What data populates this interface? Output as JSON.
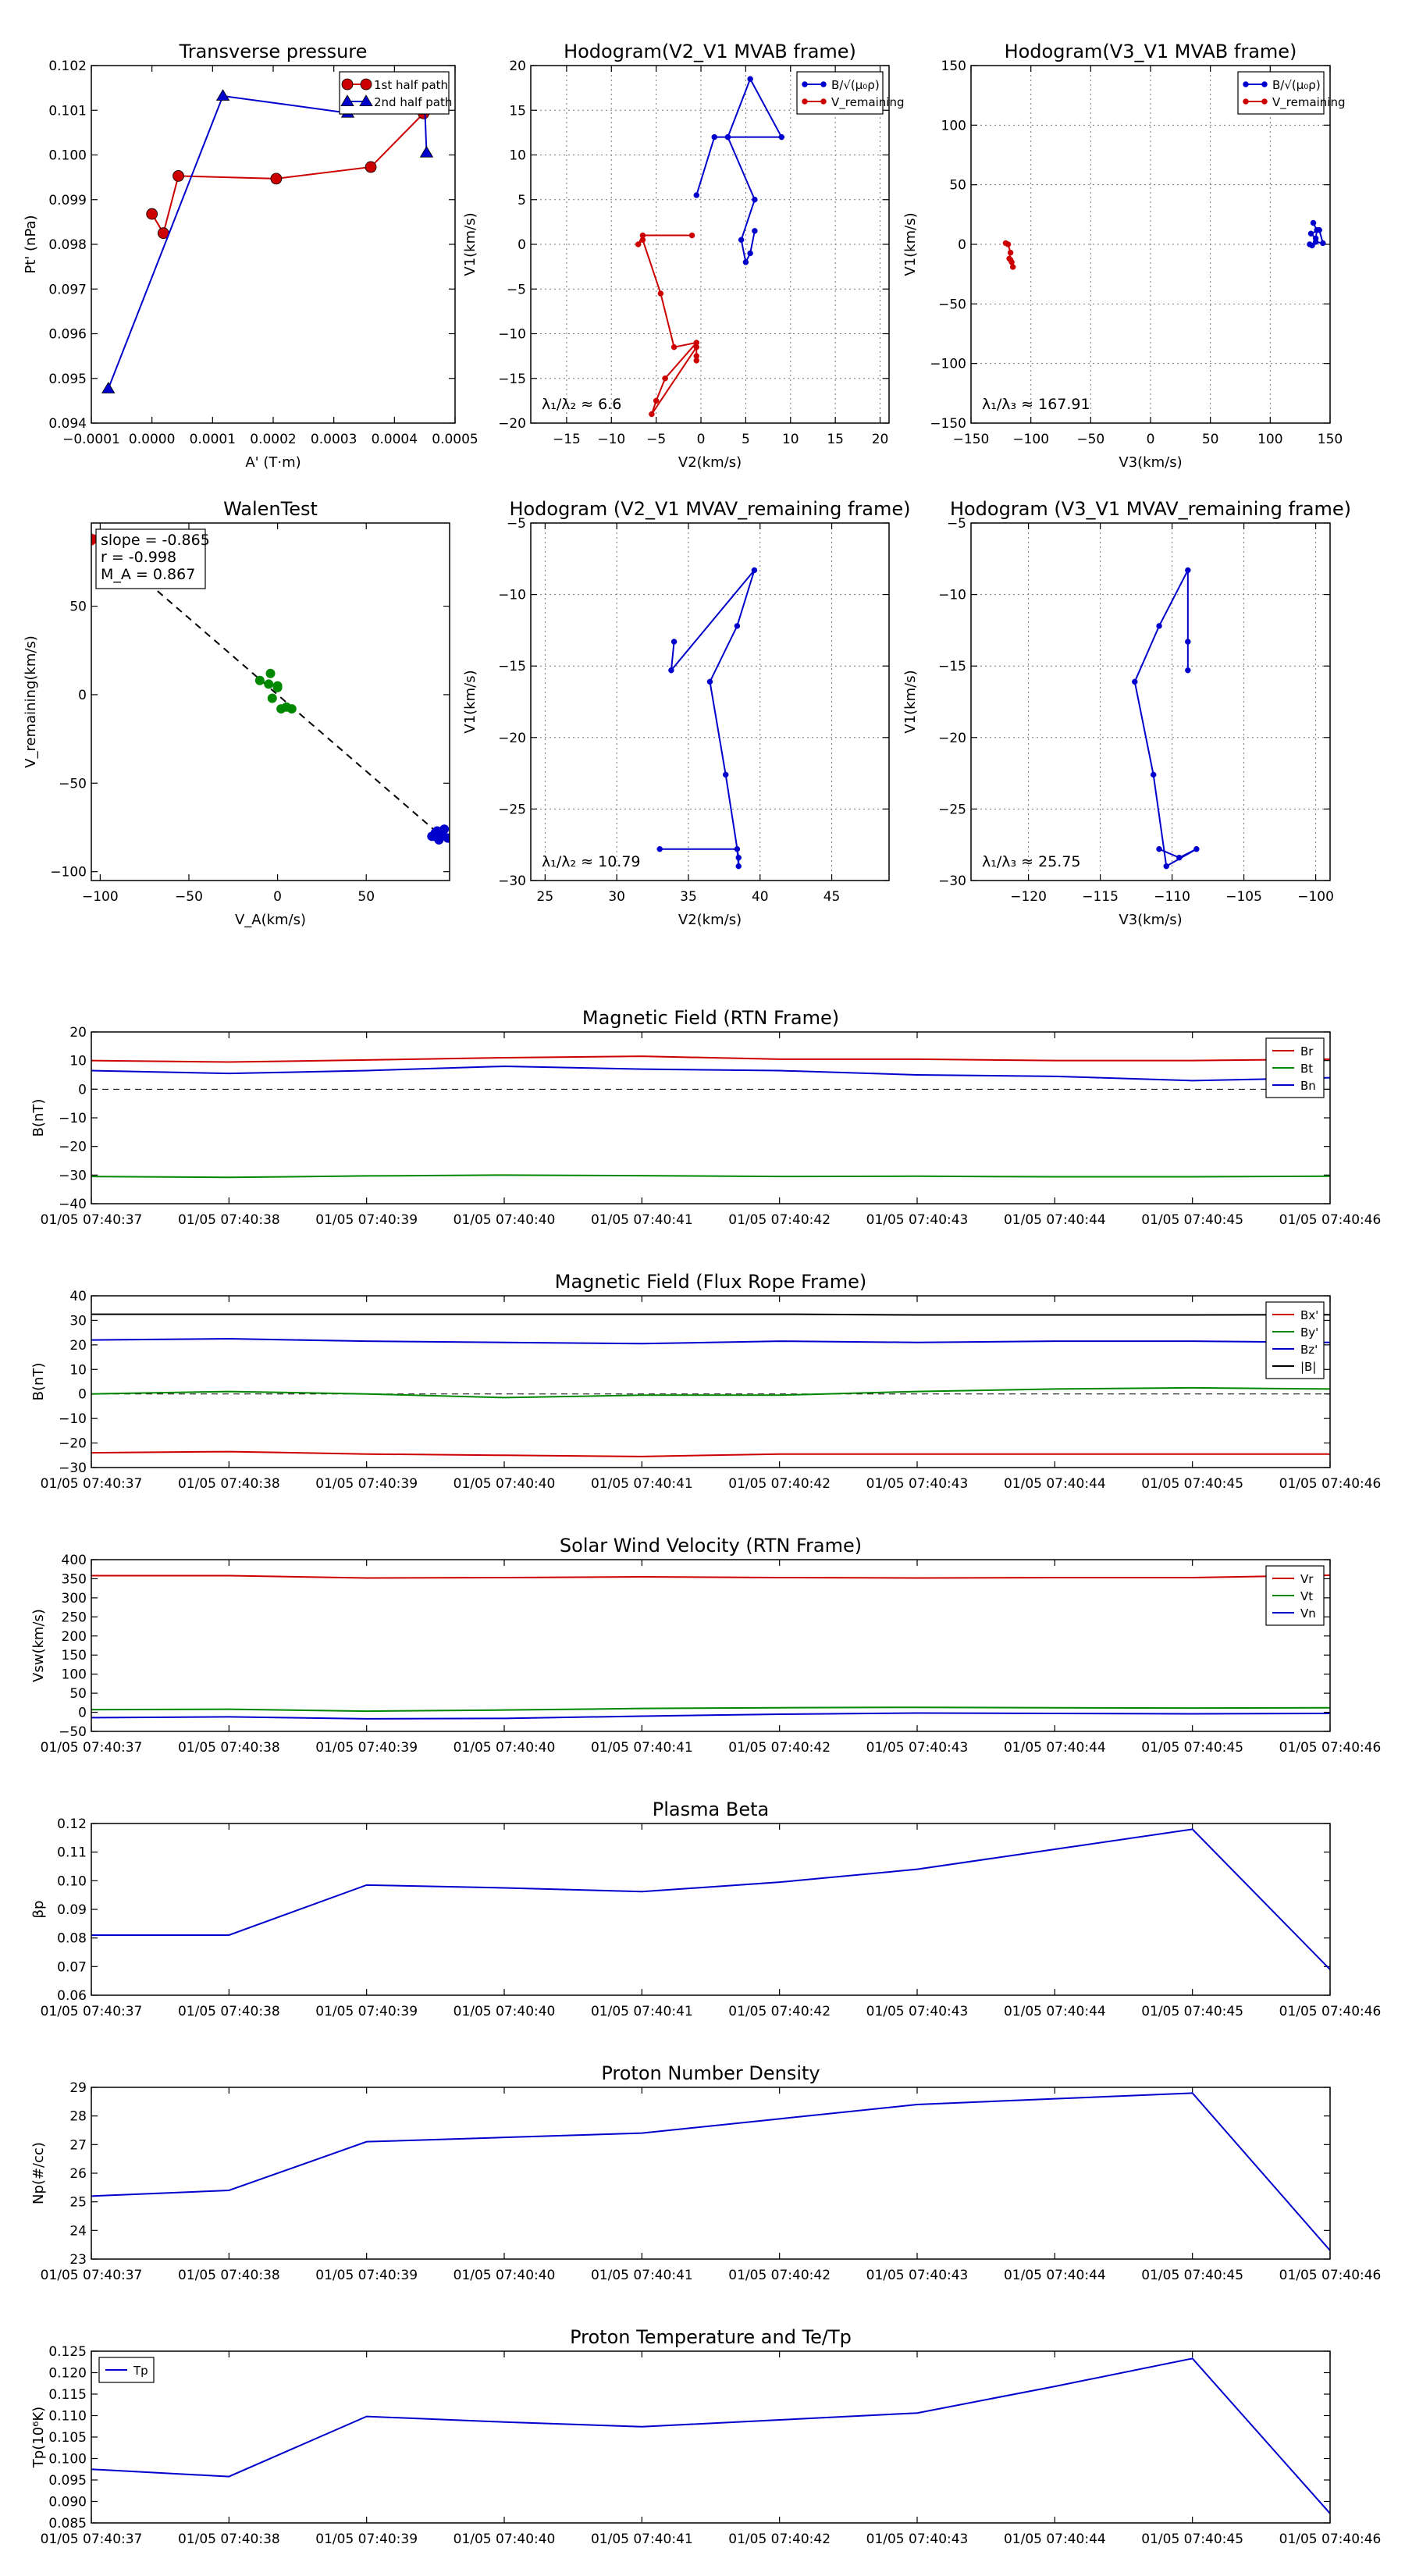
{
  "chart_data": [
    {
      "id": "pt",
      "type": "line",
      "title": "Transverse pressure",
      "xlabel": "A' (T·m)",
      "ylabel": "Pt' (nPa)",
      "xlim": [
        -0.0001,
        0.0005
      ],
      "ylim": [
        0.094,
        0.102
      ],
      "xticks": [
        -0.0001,
        0.0,
        0.0001,
        0.0002,
        0.0003,
        0.0004,
        0.0005
      ],
      "xtick_labels": [
        "−0.0001",
        "0.0000",
        "0.0001",
        "0.0002",
        "0.0003",
        "0.0004",
        "0.0005"
      ],
      "yticks": [
        0.094,
        0.095,
        0.096,
        0.097,
        0.098,
        0.099,
        0.1,
        0.101,
        0.102
      ],
      "ytick_labels": [
        "0.094",
        "0.095",
        "0.096",
        "0.097",
        "0.098",
        "0.099",
        "0.100",
        "0.101",
        "0.102"
      ],
      "grid": false,
      "legend": "top-right",
      "series": [
        {
          "name": "1st half path",
          "color": "#cc0000",
          "marker": "circle",
          "x": [
            0.000448,
            0.000361,
            0.000205,
            4.36e-05,
            1.89e-05,
            0.0
          ],
          "y": [
            0.10093,
            0.09973,
            0.09947,
            0.09953,
            0.09825,
            0.09868
          ]
        },
        {
          "name": "2nd half path",
          "color": "#0000cc",
          "marker": "triangle",
          "x": [
            -7.2e-05,
            0.000117,
            0.000323,
            0.00045,
            0.000453
          ],
          "y": [
            0.09477,
            0.10132,
            0.10094,
            0.10107,
            0.10005
          ]
        }
      ]
    },
    {
      "id": "hodo_mvab_21",
      "type": "line",
      "title": "Hodogram(V2_V1 MVAB frame)",
      "xlabel": "V2(km/s)",
      "ylabel": "V1(km/s)",
      "xlim": [
        -19,
        21
      ],
      "ylim": [
        -20,
        20
      ],
      "xticks": [
        -15,
        -10,
        -5,
        0,
        5,
        10,
        15,
        20
      ],
      "xtick_labels": [
        "−15",
        "−10",
        "−5",
        "0",
        "5",
        "10",
        "15",
        "20"
      ],
      "yticks": [
        -20,
        -15,
        -10,
        -5,
        0,
        5,
        10,
        15,
        20
      ],
      "ytick_labels": [
        "−20",
        "−15",
        "−10",
        "−5",
        "0",
        "5",
        "10",
        "15",
        "20"
      ],
      "grid": true,
      "legend": "top-right",
      "annotation": "λ₁/λ₂ ≈ 6.6",
      "series": [
        {
          "name": "B/√(μ₀ρ)",
          "color": "#0000cc",
          "marker": "circle",
          "x": [
            -0.5,
            1.5,
            3.0,
            5.5,
            9.0,
            3.0,
            6.0,
            4.5,
            5.0,
            5.5,
            6.0
          ],
          "y": [
            5.5,
            12.0,
            12.0,
            18.5,
            12.0,
            12.0,
            5.0,
            0.5,
            -2.0,
            -1.0,
            1.5
          ]
        },
        {
          "name": "V_remaining",
          "color": "#cc0000",
          "marker": "circle",
          "x": [
            -1.0,
            -6.5,
            -7.0,
            -6.5,
            -4.5,
            -3.0,
            -0.5,
            -4.0,
            -5.0,
            -5.5,
            -0.5,
            -0.5,
            -0.5
          ],
          "y": [
            1.0,
            1.0,
            0.0,
            0.5,
            -5.5,
            -11.5,
            -11.0,
            -15.0,
            -17.5,
            -19.0,
            -11.5,
            -12.5,
            -13.0
          ]
        }
      ]
    },
    {
      "id": "hodo_mvab_31",
      "type": "line",
      "title": "Hodogram(V3_V1 MVAB frame)",
      "xlabel": "V3(km/s)",
      "ylabel": "V1(km/s)",
      "xlim": [
        -150,
        150
      ],
      "ylim": [
        -150,
        150
      ],
      "xticks": [
        -150,
        -100,
        -50,
        0,
        50,
        100,
        150
      ],
      "xtick_labels": [
        "−150",
        "−100",
        "−50",
        "0",
        "50",
        "100",
        "150"
      ],
      "yticks": [
        -150,
        -100,
        -50,
        0,
        50,
        100,
        150
      ],
      "ytick_labels": [
        "−150",
        "−100",
        "−50",
        "0",
        "50",
        "100",
        "150"
      ],
      "grid": true,
      "legend": "top-right",
      "annotation": "λ₁/λ₃ ≈ 167.91",
      "series": [
        {
          "name": "B/√(μ₀ρ)",
          "color": "#0000cc",
          "marker": "circle",
          "x": [
            136,
            139,
            138,
            134,
            141,
            144,
            138,
            135,
            133
          ],
          "y": [
            18,
            12,
            5,
            9,
            12,
            1,
            2,
            -1,
            0
          ]
        },
        {
          "name": "V_remaining",
          "color": "#cc0000",
          "marker": "circle",
          "x": [
            -121,
            -119,
            -117,
            -118,
            -116,
            -115,
            -117
          ],
          "y": [
            1,
            0,
            -7,
            -12,
            -15,
            -19,
            -13
          ]
        }
      ]
    },
    {
      "id": "walen",
      "type": "scatter",
      "title": "WalenTest",
      "xlabel": "V_A(km/s)",
      "ylabel": "V_remaining(km/s)",
      "xlim": [
        -105,
        97
      ],
      "ylim": [
        -105,
        97
      ],
      "xticks": [
        -100,
        -50,
        0,
        50
      ],
      "xtick_labels": [
        "−100",
        "−50",
        "0",
        "50"
      ],
      "yticks": [
        -100,
        -50,
        0,
        50
      ],
      "ytick_labels": [
        "−100",
        "−50",
        "0",
        "50"
      ],
      "grid": false,
      "fit_line": {
        "slope": -0.865,
        "x": [
          -105,
          97
        ],
        "style": "dashed"
      },
      "stats": [
        "slope = -0.865",
        "r = -0.998",
        "M_A = 0.867"
      ],
      "series": [
        {
          "name": "red",
          "color": "#cc0000",
          "x": [
            -105,
            -104
          ],
          "y": [
            87,
            88
          ]
        },
        {
          "name": "green",
          "color": "#008800",
          "x": [
            -10,
            -5,
            -4,
            0,
            -3,
            0,
            2,
            5,
            8
          ],
          "y": [
            8,
            6,
            12,
            4,
            -2,
            5,
            -8,
            -7,
            -8
          ]
        },
        {
          "name": "blue",
          "color": "#0000cc",
          "x": [
            87,
            89,
            90,
            92,
            94,
            96,
            93,
            91,
            88
          ],
          "y": [
            -80,
            -78,
            -77,
            -79,
            -76,
            -81,
            -79,
            -82,
            -80
          ]
        }
      ]
    },
    {
      "id": "hodo_mvav_21",
      "type": "line",
      "title": "Hodogram (V2_V1 MVAV_remaining frame)",
      "xlabel": "V2(km/s)",
      "ylabel": "V1(km/s)",
      "xlim": [
        24,
        49
      ],
      "ylim": [
        -30,
        -5
      ],
      "xticks": [
        25,
        30,
        35,
        40,
        45
      ],
      "xtick_labels": [
        "25",
        "30",
        "35",
        "40",
        "45"
      ],
      "yticks": [
        -30,
        -25,
        -20,
        -15,
        -10,
        -5
      ],
      "ytick_labels": [
        "−30",
        "−25",
        "−20",
        "−15",
        "−10",
        "−5"
      ],
      "grid": true,
      "annotation": "λ₁/λ₂ ≈ 10.79",
      "series": [
        {
          "name": "trajectory",
          "color": "#0000cc",
          "marker": "circle",
          "x": [
            34.0,
            33.8,
            39.6,
            38.4,
            36.5,
            37.6,
            38.5,
            38.5,
            38.4,
            33.0
          ],
          "y": [
            -13.3,
            -15.3,
            -8.3,
            -12.2,
            -16.1,
            -22.6,
            -28.4,
            -29.0,
            -27.8,
            -27.8
          ]
        }
      ]
    },
    {
      "id": "hodo_mvav_31",
      "type": "line",
      "title": "Hodogram (V3_V1 MVAV_remaining frame)",
      "xlabel": "V3(km/s)",
      "ylabel": "V1(km/s)",
      "xlim": [
        -124,
        -99
      ],
      "ylim": [
        -30,
        -5
      ],
      "xticks": [
        -120,
        -115,
        -110,
        -105,
        -100
      ],
      "xtick_labels": [
        "−120",
        "−115",
        "−110",
        "−105",
        "−100"
      ],
      "yticks": [
        -30,
        -25,
        -20,
        -15,
        -10,
        -5
      ],
      "ytick_labels": [
        "−30",
        "−25",
        "−20",
        "−15",
        "−10",
        "−5"
      ],
      "grid": true,
      "annotation": "λ₁/λ₃ ≈ 25.75",
      "series": [
        {
          "name": "trajectory",
          "color": "#0000cc",
          "marker": "circle",
          "x": [
            -108.9,
            -108.9,
            -108.9,
            -110.9,
            -112.6,
            -111.3,
            -110.4,
            -108.3,
            -109.5,
            -110.9
          ],
          "y": [
            -15.3,
            -13.3,
            -8.3,
            -12.2,
            -16.1,
            -22.6,
            -29.0,
            -27.8,
            -28.4,
            -27.8
          ]
        }
      ]
    },
    {
      "id": "b_rtn",
      "type": "line",
      "title": "Magnetic Field (RTN Frame)",
      "xlabel": "",
      "ylabel": "B(nT)",
      "ylim": [
        -40,
        20
      ],
      "yticks": [
        -40,
        -30,
        -20,
        -10,
        0,
        10,
        20
      ],
      "ytick_labels": [
        "−40",
        "−30",
        "−20",
        "−10",
        "0",
        "10",
        "20"
      ],
      "zero_line": true,
      "legend": "top-right",
      "series": [
        {
          "name": "Br",
          "color": "#cc0000",
          "values": [
            10.0,
            9.5,
            10.2,
            11.0,
            11.5,
            10.5,
            10.5,
            10.0,
            10.0,
            10.5
          ]
        },
        {
          "name": "Bt",
          "color": "#008800",
          "values": [
            -30.5,
            -30.8,
            -30.3,
            -30.0,
            -30.2,
            -30.5,
            -30.4,
            -30.6,
            -30.6,
            -30.4
          ]
        },
        {
          "name": "Bn",
          "color": "#0000cc",
          "values": [
            6.5,
            5.5,
            6.5,
            8.0,
            7.0,
            6.5,
            5.0,
            4.5,
            3.0,
            4.0
          ]
        }
      ]
    },
    {
      "id": "b_fr",
      "type": "line",
      "title": "Magnetic Field (Flux Rope Frame)",
      "xlabel": "",
      "ylabel": "B(nT)",
      "ylim": [
        -30,
        40
      ],
      "yticks": [
        -30,
        -20,
        -10,
        0,
        10,
        20,
        30,
        40
      ],
      "ytick_labels": [
        "−30",
        "−20",
        "−10",
        "0",
        "10",
        "20",
        "30",
        "40"
      ],
      "zero_line": true,
      "legend": "top-right",
      "series": [
        {
          "name": "Bx'",
          "color": "#cc0000",
          "values": [
            -24.0,
            -23.5,
            -24.5,
            -25.0,
            -25.5,
            -24.5,
            -24.5,
            -24.5,
            -24.5,
            -24.5
          ]
        },
        {
          "name": "By'",
          "color": "#008800",
          "values": [
            0.0,
            1.0,
            0.0,
            -1.5,
            -0.5,
            -0.5,
            1.0,
            2.0,
            2.5,
            2.0
          ]
        },
        {
          "name": "Bz'",
          "color": "#0000cc",
          "values": [
            22.0,
            22.5,
            21.5,
            21.0,
            20.5,
            21.5,
            21.0,
            21.5,
            21.5,
            21.0
          ]
        },
        {
          "name": "|B|",
          "color": "#000000",
          "values": [
            32.5,
            32.5,
            32.5,
            32.5,
            32.5,
            32.5,
            32.2,
            32.2,
            32.2,
            32.3
          ]
        }
      ]
    },
    {
      "id": "vsw",
      "type": "line",
      "title": "Solar Wind Velocity (RTN Frame)",
      "xlabel": "",
      "ylabel": "Vsw(km/s)",
      "ylim": [
        -50,
        400
      ],
      "yticks": [
        -50,
        0,
        50,
        100,
        150,
        200,
        250,
        300,
        350,
        400
      ],
      "ytick_labels": [
        "−50",
        "0",
        "50",
        "100",
        "150",
        "200",
        "250",
        "300",
        "350",
        "400"
      ],
      "legend": "top-right",
      "series": [
        {
          "name": "Vr",
          "color": "#cc0000",
          "values": [
            358,
            358,
            352,
            353,
            355,
            353,
            352,
            353,
            353,
            359
          ]
        },
        {
          "name": "Vt",
          "color": "#008800",
          "values": [
            7,
            8,
            3,
            6,
            10,
            12,
            13,
            12,
            11,
            12
          ]
        },
        {
          "name": "Vn",
          "color": "#0000cc",
          "values": [
            -14,
            -12,
            -17,
            -16,
            -10,
            -5,
            -2,
            -3,
            -4,
            -3
          ]
        }
      ]
    },
    {
      "id": "beta",
      "type": "line",
      "title": "Plasma Beta",
      "xlabel": "",
      "ylabel": "βp",
      "ylim": [
        0.06,
        0.12
      ],
      "yticks": [
        0.06,
        0.07,
        0.08,
        0.09,
        0.1,
        0.11,
        0.12
      ],
      "ytick_labels": [
        "0.06",
        "0.07",
        "0.08",
        "0.09",
        "0.10",
        "0.11",
        "0.12"
      ],
      "series": [
        {
          "name": "beta",
          "color": "#0000cc",
          "values": [
            0.081,
            0.081,
            0.0985,
            0.0975,
            0.0962,
            0.0995,
            0.104,
            0.111,
            0.118,
            0.069
          ]
        }
      ]
    },
    {
      "id": "np",
      "type": "line",
      "title": "Proton Number Density",
      "xlabel": "",
      "ylabel": "Np(#/cc)",
      "ylim": [
        23,
        29
      ],
      "yticks": [
        23,
        24,
        25,
        26,
        27,
        28,
        29
      ],
      "ytick_labels": [
        "23",
        "24",
        "25",
        "26",
        "27",
        "28",
        "29"
      ],
      "series": [
        {
          "name": "Np",
          "color": "#0000cc",
          "values": [
            25.2,
            25.4,
            27.1,
            27.25,
            27.4,
            27.9,
            28.4,
            28.6,
            28.8,
            23.3
          ]
        }
      ]
    },
    {
      "id": "tp",
      "type": "line",
      "title": "Proton Temperature and Te/Tp",
      "xlabel": "",
      "ylabel": "Tp(10⁶K)",
      "ylim": [
        0.085,
        0.125
      ],
      "yticks": [
        0.085,
        0.09,
        0.095,
        0.1,
        0.105,
        0.11,
        0.115,
        0.12,
        0.125
      ],
      "ytick_labels": [
        "0.085",
        "0.090",
        "0.095",
        "0.100",
        "0.105",
        "0.110",
        "0.115",
        "0.120",
        "0.125"
      ],
      "legend": "top-left",
      "series": [
        {
          "name": "Tp",
          "color": "#0000cc",
          "values": [
            0.0975,
            0.0958,
            0.1098,
            0.1085,
            0.1074,
            0.109,
            0.1106,
            0.1168,
            0.1233,
            0.0872
          ]
        }
      ]
    }
  ],
  "time_labels": [
    "01/05 07:40:37",
    "01/05 07:40:38",
    "01/05 07:40:39",
    "01/05 07:40:40",
    "01/05 07:40:41",
    "01/05 07:40:42",
    "01/05 07:40:43",
    "01/05 07:40:44",
    "01/05 07:40:45",
    "01/05 07:40:46"
  ]
}
